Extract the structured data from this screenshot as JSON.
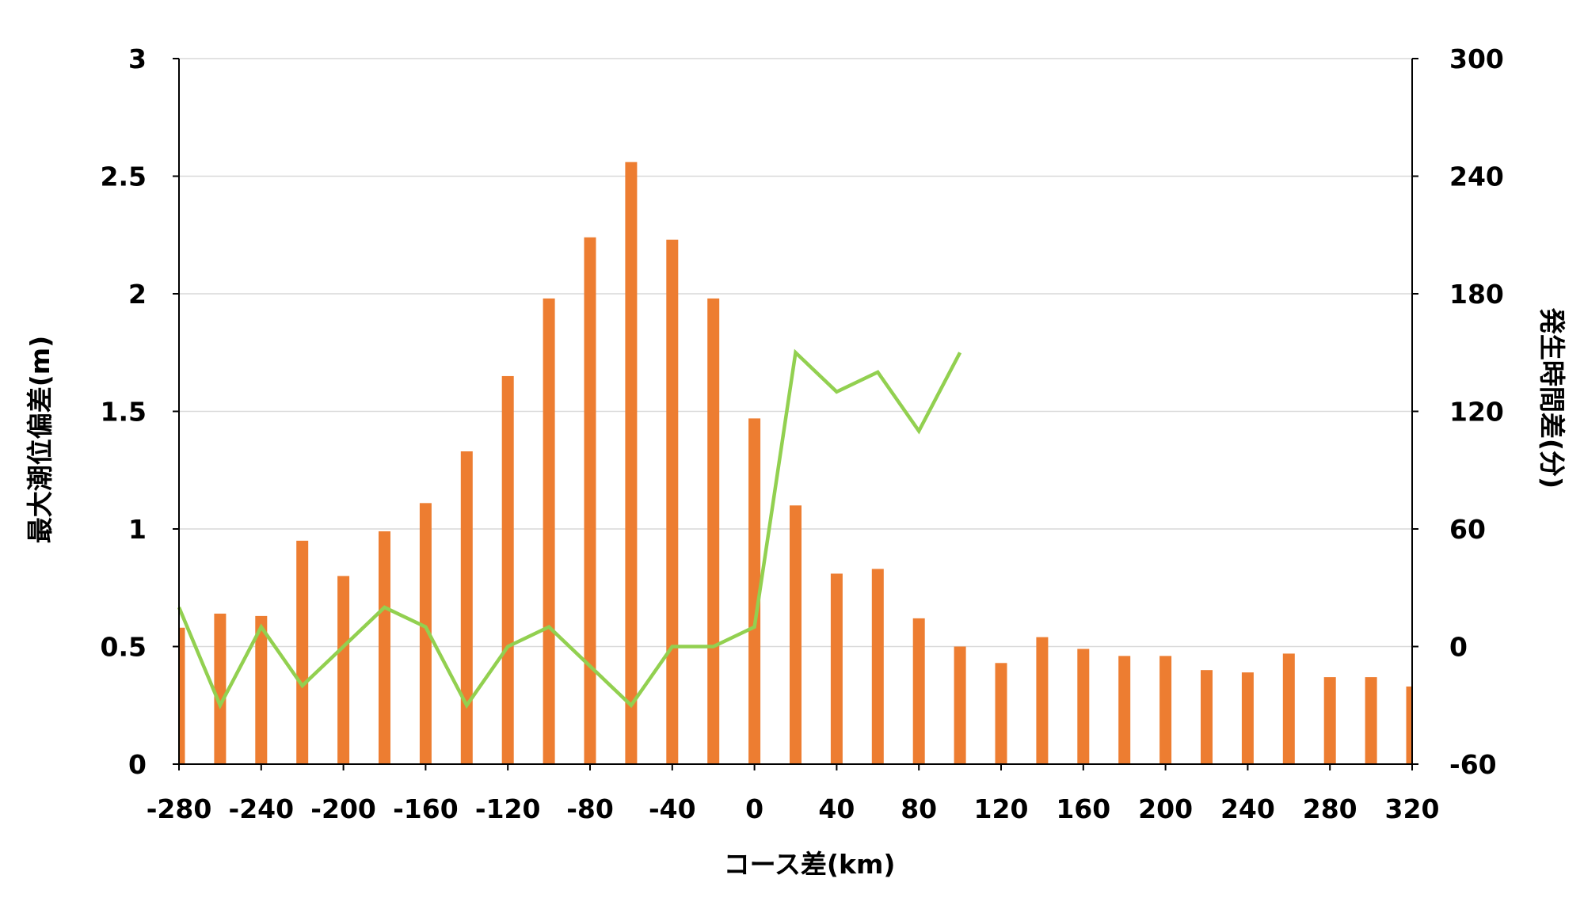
{
  "chart_data": {
    "type": "bar",
    "xlabel": "コース差(km)",
    "ylabel": "最大潮位偏差(m)",
    "y2label": "発生時間差(分)",
    "x_ticks": [
      "-280",
      "-240",
      "-200",
      "-160",
      "-120",
      "-80",
      "-40",
      "0",
      "40",
      "80",
      "120",
      "160",
      "200",
      "240",
      "280",
      "320"
    ],
    "y_ticks": [
      "0",
      "0.5",
      "1",
      "1.5",
      "2",
      "2.5",
      "3"
    ],
    "y2_ticks": [
      "-60",
      "0",
      "60",
      "120",
      "180",
      "240",
      "300"
    ],
    "xlim": [
      -280,
      320
    ],
    "ylim": [
      0,
      3
    ],
    "y2lim": [
      -60,
      300
    ],
    "grid": true,
    "colors": {
      "bars": "#ed7d31",
      "line": "#92d050"
    },
    "bar_series": {
      "axis": "left",
      "x": [
        -280,
        -260,
        -240,
        -220,
        -200,
        -180,
        -160,
        -140,
        -120,
        -100,
        -80,
        -60,
        -40,
        -20,
        0,
        20,
        40,
        60,
        80,
        100,
        120,
        140,
        160,
        180,
        200,
        220,
        240,
        260,
        280,
        300,
        320
      ],
      "values": [
        0.58,
        0.64,
        0.63,
        0.95,
        0.8,
        0.99,
        1.11,
        1.33,
        1.65,
        1.98,
        2.24,
        2.56,
        2.23,
        1.98,
        1.47,
        1.1,
        0.81,
        0.83,
        0.62,
        0.5,
        0.43,
        0.54,
        0.49,
        0.46,
        0.46,
        0.4,
        0.39,
        0.47,
        0.37,
        0.37,
        0.33
      ]
    },
    "line_series": {
      "axis": "right",
      "x": [
        -280,
        -260,
        -240,
        -220,
        -200,
        -180,
        -160,
        -140,
        -120,
        -100,
        -80,
        -60,
        -40,
        -20,
        0,
        20,
        40,
        60,
        80,
        100
      ],
      "values": [
        20,
        -30,
        10,
        -20,
        0,
        20,
        10,
        -30,
        0,
        10,
        -10,
        -30,
        0,
        0,
        10,
        150,
        130,
        140,
        110,
        150
      ]
    }
  }
}
